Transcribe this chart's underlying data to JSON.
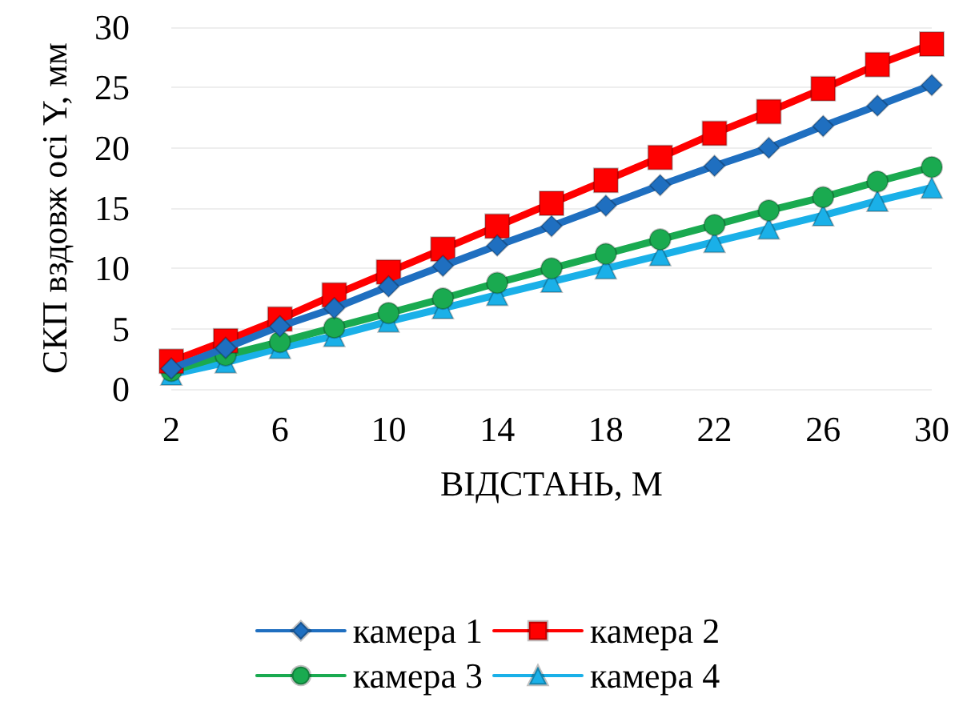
{
  "chart_data": {
    "type": "line",
    "xlabel": "ВІДСТАНЬ, М",
    "ylabel": "СКП вздовж осі Y, мм",
    "x": [
      2,
      4,
      6,
      8,
      10,
      12,
      14,
      16,
      18,
      20,
      22,
      24,
      26,
      28,
      30
    ],
    "xlim": [
      2,
      30
    ],
    "xticks": [
      2,
      6,
      10,
      14,
      18,
      22,
      26,
      30
    ],
    "ylim": [
      0,
      30
    ],
    "yticks": [
      0,
      5,
      10,
      15,
      20,
      25,
      30
    ],
    "grid": "y",
    "legend": "bottom",
    "line_style": "solid",
    "series": [
      {
        "name": "камера 1",
        "color": "#1f6fc0",
        "marker": "diamond",
        "values": [
          1.7,
          3.4,
          5.2,
          6.7,
          8.5,
          10.2,
          11.9,
          13.5,
          15.2,
          16.9,
          18.5,
          20.0,
          21.8,
          23.5,
          25.2
        ]
      },
      {
        "name": "камера 2",
        "color": "#ff0000",
        "marker": "square",
        "values": [
          2.3,
          4.0,
          5.8,
          7.8,
          9.7,
          11.6,
          13.5,
          15.4,
          17.3,
          19.2,
          21.2,
          23.0,
          24.9,
          26.9,
          28.6
        ]
      },
      {
        "name": "камера 3",
        "color": "#1aaa50",
        "marker": "circle",
        "values": [
          1.5,
          2.8,
          3.9,
          5.1,
          6.3,
          7.5,
          8.8,
          10.0,
          11.2,
          12.4,
          13.6,
          14.8,
          15.9,
          17.2,
          18.4
        ]
      },
      {
        "name": "камера 4",
        "color": "#1ab0e8",
        "marker": "triangle",
        "values": [
          1.2,
          2.2,
          3.4,
          4.4,
          5.6,
          6.7,
          7.8,
          8.9,
          10.0,
          11.1,
          12.2,
          13.3,
          14.4,
          15.6,
          16.7
        ]
      }
    ]
  }
}
